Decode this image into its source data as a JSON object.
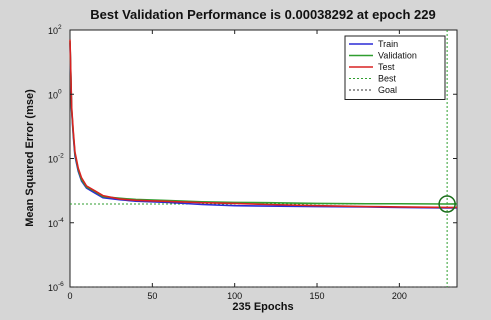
{
  "chart_data": {
    "type": "line",
    "title": "Best Validation Performance is 0.00038292 at epoch 229",
    "xlabel": "235 Epochs",
    "ylabel": "Mean Squared Error  (mse)",
    "xlim": [
      0,
      235
    ],
    "ylim": [
      1e-06,
      100
    ],
    "yscale": "log",
    "xticks": [
      "0",
      "50",
      "100",
      "150",
      "200"
    ],
    "xtick_values": [
      0,
      50,
      100,
      150,
      200
    ],
    "ytick_exponents": [
      "2",
      "0",
      "-2",
      "-4",
      "-6"
    ],
    "ytick_values": [
      100,
      1,
      0.01,
      0.0001,
      1e-06
    ],
    "ytick_base": "10",
    "legend_position": "top-right",
    "series": [
      {
        "name": "Train",
        "color": "#2b2bd6",
        "style": "solid",
        "x": [
          0,
          1,
          2,
          3,
          5,
          7,
          10,
          15,
          20,
          30,
          40,
          60,
          80,
          100,
          120,
          150,
          180,
          200,
          229,
          235
        ],
        "y": [
          40,
          0.3,
          0.05,
          0.012,
          0.004,
          0.002,
          0.0012,
          0.00085,
          0.0006,
          0.00052,
          0.00047,
          0.00043,
          0.00037,
          0.00034,
          0.00033,
          0.00032,
          0.00031,
          0.0003,
          0.00029,
          0.00029
        ]
      },
      {
        "name": "Validation",
        "color": "#2f9e2f",
        "style": "solid",
        "x": [
          0,
          1,
          2,
          3,
          5,
          7,
          10,
          15,
          20,
          30,
          40,
          60,
          80,
          100,
          120,
          150,
          180,
          200,
          229,
          235
        ],
        "y": [
          45,
          0.35,
          0.06,
          0.014,
          0.0045,
          0.0022,
          0.0013,
          0.00095,
          0.00065,
          0.00058,
          0.00053,
          0.00049,
          0.00045,
          0.00043,
          0.00042,
          0.0004,
          0.00039,
          0.00039,
          0.000383,
          0.000384
        ]
      },
      {
        "name": "Test",
        "color": "#d82222",
        "style": "solid",
        "x": [
          0,
          1,
          2,
          3,
          5,
          7,
          10,
          15,
          20,
          30,
          40,
          60,
          80,
          100,
          120,
          150,
          180,
          200,
          229,
          235
        ],
        "y": [
          50,
          0.4,
          0.07,
          0.016,
          0.005,
          0.0025,
          0.0014,
          0.001,
          0.0007,
          0.00055,
          0.0005,
          0.00046,
          0.00042,
          0.0004,
          0.00037,
          0.00034,
          0.00032,
          0.00031,
          0.0003,
          0.0003
        ]
      },
      {
        "name": "Best",
        "color": "#2f9e2f",
        "style": "dotted",
        "best_epoch": 229,
        "best_value": 0.00038292
      },
      {
        "name": "Goal",
        "color": "#333333",
        "style": "dotted",
        "goal_value": 1e-06
      }
    ]
  }
}
